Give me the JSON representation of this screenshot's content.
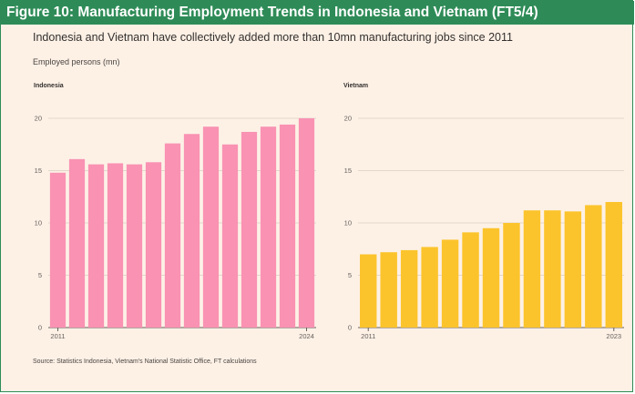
{
  "banner_title": "Figure 10: Manufacturing Employment Trends in Indonesia and Vietnam (FT5/4)",
  "subtitle": "Indonesia and Vietnam have collectively added more than 10mn manufacturing jobs since 2011",
  "unit_label": "Employed persons (mn)",
  "source": "Source: Statistics Indonesia, Vietnam's National Statistic Office, FT calculations",
  "colors": {
    "banner": "#2e8b57",
    "indonesia": "#f992b3",
    "vietnam": "#fcc42c",
    "background": "#fdf1e6"
  },
  "chart_data": [
    {
      "type": "bar",
      "title": "Indonesia",
      "ylim": [
        0,
        20
      ],
      "yticks": [
        0,
        5,
        10,
        15,
        20
      ],
      "x_tick_labels": [
        "2011",
        "2024"
      ],
      "categories": [
        "2011",
        "2012",
        "2013",
        "2014",
        "2015",
        "2016",
        "2017",
        "2018",
        "2019",
        "2020",
        "2021",
        "2022",
        "2023",
        "2024"
      ],
      "values": [
        14.8,
        16.1,
        15.6,
        15.7,
        15.6,
        15.8,
        17.6,
        18.5,
        19.2,
        17.5,
        18.7,
        19.2,
        19.4,
        20.0
      ]
    },
    {
      "type": "bar",
      "title": "Vietnam",
      "ylim": [
        0,
        20
      ],
      "yticks": [
        0,
        5,
        10,
        15,
        20
      ],
      "x_tick_labels": [
        "2011",
        "2023"
      ],
      "categories": [
        "2011",
        "2012",
        "2013",
        "2014",
        "2015",
        "2016",
        "2017",
        "2018",
        "2019",
        "2020",
        "2021",
        "2022",
        "2023"
      ],
      "values": [
        7.0,
        7.2,
        7.4,
        7.7,
        8.4,
        9.1,
        9.5,
        10.0,
        11.2,
        11.2,
        11.1,
        11.7,
        12.0
      ]
    }
  ]
}
